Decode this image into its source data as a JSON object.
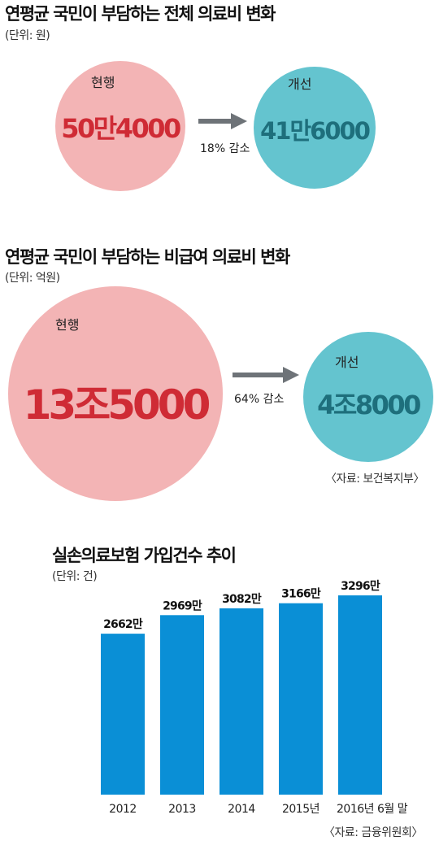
{
  "section1": {
    "title": "연평균 국민이 부담하는 전체 의료비 변화",
    "unit": "(단위: 원)",
    "current": {
      "label": "현행",
      "value": "50만4000"
    },
    "improved": {
      "label": "개선",
      "value": "41만6000"
    },
    "change": "18% 감소"
  },
  "section2": {
    "title": "연평균 국민이 부담하는 비급여 의료비 변화",
    "unit": "(단위: 억원)",
    "current": {
      "label": "현행",
      "value": "13조5000"
    },
    "improved": {
      "label": "개선",
      "value": "4조8000"
    },
    "change": "64% 감소",
    "source": "〈자료: 보건복지부〉"
  },
  "section3": {
    "title": "실손의료보험 가입건수 추이",
    "unit": "(단위: 건)",
    "source": "〈자료: 금융위원회〉"
  },
  "colors": {
    "pink": "#f3b4b5",
    "teal": "#64c4cf",
    "red_text": "#cf2b35",
    "teal_text": "#1e6f7c",
    "bar": "#0a8fd6",
    "arrow": "#6e7378"
  },
  "chart_data": {
    "type": "bar",
    "categories": [
      "2012",
      "2013",
      "2014",
      "2015년",
      "2016년 6월 말"
    ],
    "values": [
      2662,
      2969,
      3082,
      3166,
      3296
    ],
    "value_labels": [
      "2662만",
      "2969만",
      "3082만",
      "3166만",
      "3296만"
    ],
    "ylim": [
      0,
      3296
    ],
    "grid": false,
    "legend": false
  }
}
